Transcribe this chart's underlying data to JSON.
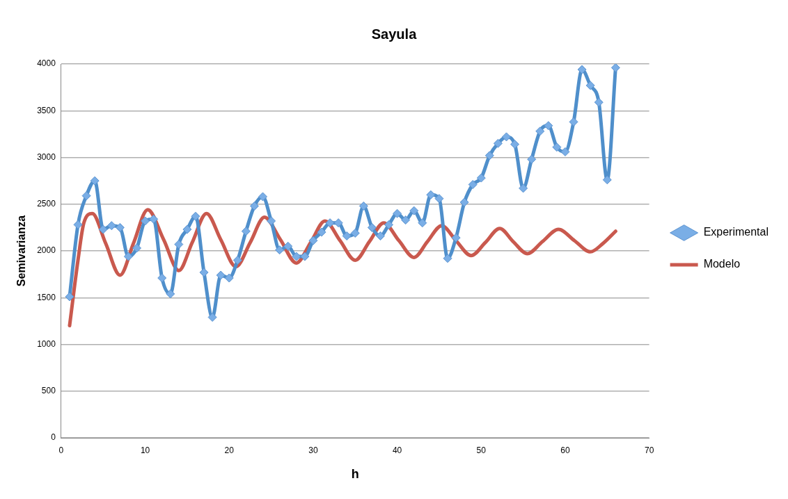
{
  "chart_data": {
    "type": "line",
    "title": "Sayula",
    "xlabel": "h",
    "ylabel": "Semivarianza",
    "xlim": [
      0,
      70
    ],
    "xticks": [
      0,
      10,
      20,
      30,
      40,
      50,
      60,
      70
    ],
    "ylim": [
      0,
      4000
    ],
    "yticks": [
      0,
      500,
      1000,
      1500,
      2000,
      2500,
      3000,
      3500,
      4000
    ],
    "grid": "y",
    "legend": "right",
    "series": [
      {
        "name": "Experimental",
        "color": "#4f8fcb",
        "marker": "diamond",
        "x": [
          1,
          2,
          3,
          4,
          5,
          6,
          7,
          8,
          9,
          10,
          11,
          12,
          13,
          14,
          15,
          16,
          17,
          18,
          19,
          20,
          21,
          22,
          23,
          24,
          25,
          26,
          27,
          28,
          29,
          30,
          31,
          32,
          33,
          34,
          35,
          36,
          37,
          38,
          39,
          40,
          41,
          42,
          43,
          44,
          45,
          46,
          47,
          48,
          49,
          50,
          51,
          52,
          53,
          54,
          55,
          56,
          57,
          58,
          59,
          60,
          61,
          62,
          63,
          64,
          65,
          66
        ],
        "values": [
          1510,
          2280,
          2590,
          2750,
          2230,
          2270,
          2250,
          1940,
          2030,
          2320,
          2340,
          1710,
          1540,
          2070,
          2230,
          2370,
          1770,
          1290,
          1740,
          1710,
          1900,
          2210,
          2480,
          2580,
          2320,
          2010,
          2050,
          1940,
          1940,
          2110,
          2200,
          2300,
          2300,
          2160,
          2190,
          2480,
          2250,
          2160,
          2280,
          2400,
          2330,
          2430,
          2300,
          2600,
          2560,
          1920,
          2140,
          2520,
          2710,
          2780,
          3020,
          3150,
          3220,
          3140,
          2670,
          2980,
          3280,
          3340,
          3110,
          3060,
          3380,
          3940,
          3770,
          3590,
          2760,
          3960
        ]
      },
      {
        "name": "Modelo",
        "color": "#c9594e",
        "marker": "none",
        "x": [
          1,
          2,
          2.7,
          3.7,
          5.3,
          7,
          8.6,
          10.3,
          12.2,
          14,
          15.6,
          17.3,
          19,
          20.8,
          22.5,
          24.2,
          26.1,
          28,
          29.7,
          31.4,
          33.2,
          35,
          36.7,
          38.4,
          40.2,
          42,
          43.6,
          45.3,
          47,
          48.8,
          50.5,
          52.2,
          53.8,
          55.5,
          57.3,
          59.2,
          61.1,
          63,
          64.5,
          66
        ],
        "values": [
          1200,
          1900,
          2300,
          2400,
          2080,
          1740,
          2080,
          2440,
          2120,
          1790,
          2090,
          2400,
          2120,
          1830,
          2090,
          2360,
          2120,
          1870,
          2090,
          2320,
          2110,
          1900,
          2100,
          2300,
          2110,
          1930,
          2100,
          2270,
          2110,
          1950,
          2090,
          2240,
          2100,
          1970,
          2100,
          2230,
          2110,
          1990,
          2080,
          2210
        ]
      }
    ]
  }
}
